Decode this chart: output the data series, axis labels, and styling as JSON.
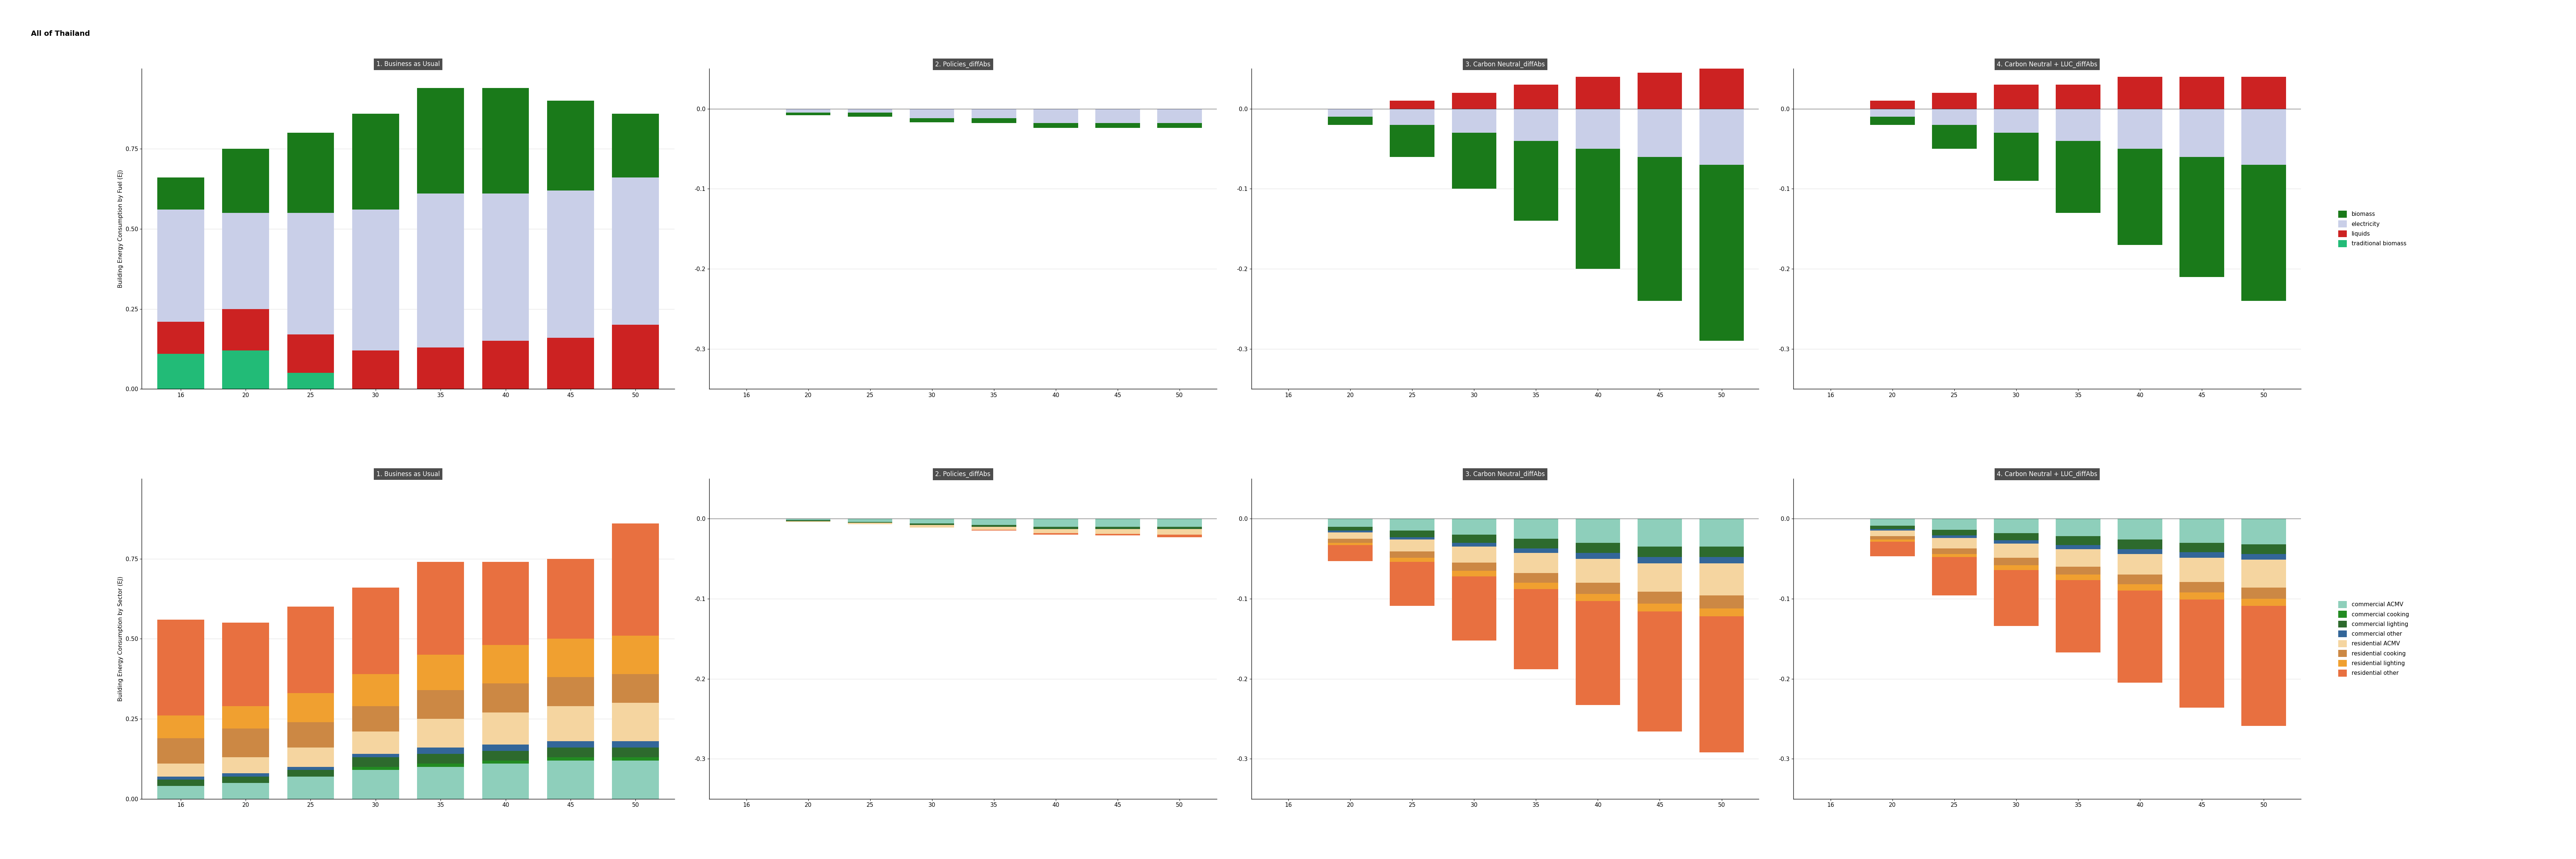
{
  "title": "All of Thailand",
  "years": [
    2016,
    2020,
    2025,
    2030,
    2035,
    2040,
    2045,
    2050
  ],
  "year_labels": [
    "16",
    "20",
    "25",
    "30",
    "35",
    "40",
    "45",
    "50"
  ],
  "row1_ylabel": "Building Energy Consumption by Fuel (EJ)",
  "row2_ylabel": "Building Energy Consumption by Sector (EJ)",
  "panel_titles": [
    "1. Business as Usual",
    "2. Policies_diffAbs",
    "3. Carbon Neutral_diffAbs",
    "4. Carbon Neutral + LUC_diffAbs"
  ],
  "fuel_colors": {
    "biomass": "#1a7a1a",
    "electricity": "#c9cfe8",
    "liquids": "#cc2222",
    "traditional_biomass": "#22bb77"
  },
  "sector_colors": {
    "commercial_ACMV": "#8ecfbb",
    "commercial_cooking": "#228B22",
    "commercial_lighting": "#2d6a2d",
    "commercial_other": "#336699",
    "residential_ACMV": "#f5d5a0",
    "residential_cooking": "#cc8844",
    "residential_lighting": "#f0a030",
    "residential_other": "#e87040"
  },
  "bau_fuel": {
    "traditional_biomass": [
      0.11,
      0.12,
      0.05,
      0.0,
      0.0,
      0.0,
      0.0,
      0.0
    ],
    "liquids": [
      0.1,
      0.13,
      0.12,
      0.12,
      0.13,
      0.15,
      0.16,
      0.2
    ],
    "electricity": [
      0.35,
      0.3,
      0.38,
      0.44,
      0.48,
      0.46,
      0.46,
      0.46
    ],
    "biomass": [
      0.1,
      0.2,
      0.25,
      0.3,
      0.33,
      0.33,
      0.28,
      0.2
    ]
  },
  "bau_sector": {
    "commercial_ACMV": [
      0.04,
      0.05,
      0.07,
      0.09,
      0.1,
      0.11,
      0.12,
      0.12
    ],
    "commercial_cooking": [
      0.0,
      0.0,
      0.0,
      0.01,
      0.01,
      0.01,
      0.01,
      0.01
    ],
    "commercial_lighting": [
      0.02,
      0.02,
      0.02,
      0.03,
      0.03,
      0.03,
      0.03,
      0.03
    ],
    "commercial_other": [
      0.01,
      0.01,
      0.01,
      0.01,
      0.02,
      0.02,
      0.02,
      0.02
    ],
    "residential_ACMV": [
      0.04,
      0.05,
      0.06,
      0.07,
      0.09,
      0.1,
      0.11,
      0.12
    ],
    "residential_cooking": [
      0.08,
      0.09,
      0.08,
      0.08,
      0.09,
      0.09,
      0.09,
      0.09
    ],
    "residential_lighting": [
      0.07,
      0.07,
      0.09,
      0.1,
      0.11,
      0.12,
      0.12,
      0.12
    ],
    "residential_other": [
      0.3,
      0.26,
      0.27,
      0.27,
      0.29,
      0.26,
      0.25,
      0.35
    ]
  },
  "diff_fuel_policies": {
    "traditional_biomass": [
      0.0,
      0.0,
      0.0,
      0.0,
      0.0,
      0.0,
      0.0,
      0.0
    ],
    "liquids": [
      0.0,
      0.0,
      0.0,
      0.0,
      0.0,
      0.0,
      0.0,
      0.0
    ],
    "electricity": [
      0.0,
      -0.005,
      -0.005,
      -0.012,
      -0.012,
      -0.018,
      -0.018,
      -0.018
    ],
    "biomass": [
      0.0,
      -0.003,
      -0.005,
      -0.005,
      -0.006,
      -0.006,
      -0.006,
      -0.006
    ]
  },
  "diff_fuel_cn": {
    "traditional_biomass": [
      0.0,
      0.0,
      0.0,
      0.0,
      0.0,
      0.0,
      0.0,
      0.0
    ],
    "liquids": [
      0.0,
      0.0,
      0.01,
      0.02,
      0.03,
      0.04,
      0.045,
      0.05
    ],
    "electricity": [
      0.0,
      -0.01,
      -0.02,
      -0.03,
      -0.04,
      -0.05,
      -0.06,
      -0.07
    ],
    "biomass": [
      0.0,
      -0.01,
      -0.04,
      -0.07,
      -0.1,
      -0.15,
      -0.18,
      -0.22
    ]
  },
  "diff_fuel_luc": {
    "traditional_biomass": [
      0.0,
      0.0,
      0.0,
      0.0,
      0.0,
      0.0,
      0.0,
      0.0
    ],
    "liquids": [
      0.0,
      0.01,
      0.02,
      0.03,
      0.03,
      0.04,
      0.04,
      0.04
    ],
    "electricity": [
      0.0,
      -0.01,
      -0.02,
      -0.03,
      -0.04,
      -0.05,
      -0.06,
      -0.07
    ],
    "biomass": [
      0.0,
      -0.01,
      -0.03,
      -0.06,
      -0.09,
      -0.12,
      -0.15,
      -0.17
    ]
  },
  "diff_sector_policies": {
    "commercial_ACMV": [
      0.0,
      -0.002,
      -0.004,
      -0.006,
      -0.008,
      -0.01,
      -0.01,
      -0.01
    ],
    "commercial_cooking": [
      0.0,
      0.0,
      0.0,
      0.0,
      0.0,
      0.0,
      0.0,
      0.0
    ],
    "commercial_lighting": [
      0.0,
      -0.001,
      -0.001,
      -0.002,
      -0.002,
      -0.003,
      -0.003,
      -0.003
    ],
    "commercial_other": [
      0.0,
      0.0,
      0.0,
      0.0,
      0.0,
      0.0,
      0.0,
      0.0
    ],
    "residential_ACMV": [
      0.0,
      -0.001,
      -0.002,
      -0.003,
      -0.004,
      -0.005,
      -0.006,
      -0.007
    ],
    "residential_cooking": [
      0.0,
      0.0,
      0.0,
      0.0,
      0.0,
      0.0,
      0.0,
      0.0
    ],
    "residential_lighting": [
      0.0,
      0.0,
      0.0,
      0.0,
      0.0,
      0.0,
      0.0,
      0.0
    ],
    "residential_other": [
      0.0,
      0.0,
      0.0,
      0.0,
      -0.001,
      -0.002,
      -0.002,
      -0.003
    ]
  },
  "diff_sector_cn": {
    "commercial_ACMV": [
      0.0,
      -0.01,
      -0.015,
      -0.02,
      -0.025,
      -0.03,
      -0.035,
      -0.035
    ],
    "commercial_cooking": [
      0.0,
      0.0,
      0.0,
      0.0,
      0.0,
      0.0,
      0.0,
      0.0
    ],
    "commercial_lighting": [
      0.0,
      -0.005,
      -0.008,
      -0.01,
      -0.012,
      -0.013,
      -0.013,
      -0.013
    ],
    "commercial_other": [
      0.0,
      -0.002,
      -0.003,
      -0.005,
      -0.006,
      -0.007,
      -0.008,
      -0.008
    ],
    "residential_ACMV": [
      0.0,
      -0.008,
      -0.015,
      -0.02,
      -0.025,
      -0.03,
      -0.035,
      -0.04
    ],
    "residential_cooking": [
      0.0,
      -0.005,
      -0.008,
      -0.01,
      -0.012,
      -0.014,
      -0.015,
      -0.016
    ],
    "residential_lighting": [
      0.0,
      -0.003,
      -0.005,
      -0.007,
      -0.008,
      -0.009,
      -0.01,
      -0.01
    ],
    "residential_other": [
      0.0,
      -0.02,
      -0.055,
      -0.08,
      -0.1,
      -0.13,
      -0.15,
      -0.17
    ]
  },
  "diff_sector_luc": {
    "commercial_ACMV": [
      0.0,
      -0.009,
      -0.014,
      -0.018,
      -0.022,
      -0.026,
      -0.03,
      -0.032
    ],
    "commercial_cooking": [
      0.0,
      0.0,
      0.0,
      0.0,
      0.0,
      0.0,
      0.0,
      0.0
    ],
    "commercial_lighting": [
      0.0,
      -0.004,
      -0.007,
      -0.009,
      -0.011,
      -0.012,
      -0.012,
      -0.012
    ],
    "commercial_other": [
      0.0,
      -0.002,
      -0.003,
      -0.004,
      -0.005,
      -0.006,
      -0.007,
      -0.007
    ],
    "residential_ACMV": [
      0.0,
      -0.007,
      -0.013,
      -0.018,
      -0.022,
      -0.026,
      -0.03,
      -0.035
    ],
    "residential_cooking": [
      0.0,
      -0.004,
      -0.007,
      -0.009,
      -0.01,
      -0.012,
      -0.013,
      -0.014
    ],
    "residential_lighting": [
      0.0,
      -0.003,
      -0.004,
      -0.006,
      -0.007,
      -0.008,
      -0.009,
      -0.009
    ],
    "residential_other": [
      0.0,
      -0.018,
      -0.048,
      -0.07,
      -0.09,
      -0.115,
      -0.135,
      -0.15
    ]
  },
  "ylim_bau": [
    0.0,
    1.0
  ],
  "ylim_diff": [
    -0.35,
    0.05
  ],
  "yticks_bau": [
    0.0,
    0.25,
    0.5,
    0.75
  ],
  "yticks_diff": [
    0.0,
    -0.1,
    -0.2,
    -0.3
  ],
  "panel_header_color": "#4d4d4d"
}
